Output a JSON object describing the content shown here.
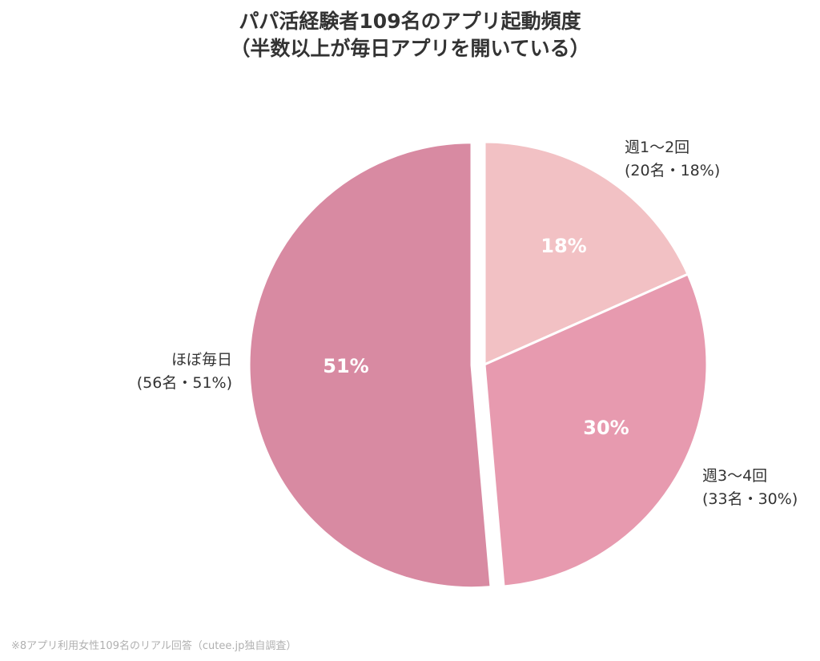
{
  "chart_data": {
    "type": "pie",
    "title_line1": "パパ活経験者109名のアプリ起動頻度",
    "title_line2": "（半数以上が毎日アプリを開いている）",
    "slices": [
      {
        "category": "週1〜2回",
        "detail": "(20名・18%)",
        "count": 20,
        "percent": 18,
        "value_label": "18%",
        "color": "#f2c1c4"
      },
      {
        "category": "週3〜4回",
        "detail": "(33名・30%)",
        "count": 33,
        "percent": 30,
        "value_label": "30%",
        "color": "#e79aaf"
      },
      {
        "category": "ほぼ毎日",
        "detail": "(56名・51%)",
        "count": 56,
        "percent": 51,
        "value_label": "51%",
        "color": "#d88aa2"
      }
    ],
    "exploded_slice": "ほぼ毎日",
    "footnote": "※8アプリ利用女性109名のリアル回答（cutee.jp独自調査）"
  }
}
